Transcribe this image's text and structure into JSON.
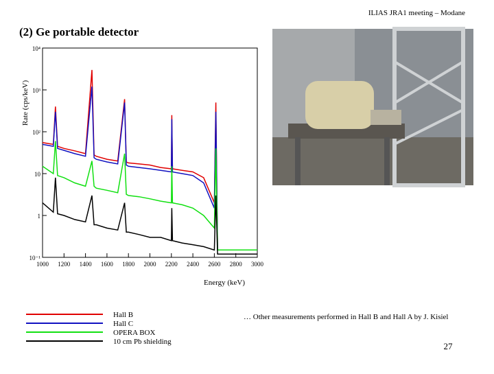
{
  "header": "ILIAS JRA1 meeting – Modane",
  "title": "(2) Ge portable detector",
  "note": "… Other measurements performed in Hall B and Hall A by J. Kisiel",
  "page_number": "27",
  "chart_data": {
    "type": "line",
    "ylabel": "Rate (cps/keV)",
    "xlabel": "Energy (keV)",
    "ylog": true,
    "xlim": [
      1000,
      3000
    ],
    "ylim": [
      0.1,
      10000
    ],
    "xticks": [
      1000,
      1200,
      1400,
      1600,
      1800,
      2000,
      2200,
      2400,
      2600,
      2800,
      3000
    ],
    "yticks": [
      {
        "value": 0.1,
        "label": "10⁻¹"
      },
      {
        "value": 1,
        "label": "1"
      },
      {
        "value": 10,
        "label": "10"
      },
      {
        "value": 100,
        "label": "10²"
      },
      {
        "value": 1000,
        "label": "10³"
      },
      {
        "value": 10000,
        "label": "10⁴"
      }
    ],
    "x": [
      1000,
      1100,
      1120,
      1140,
      1200,
      1300,
      1400,
      1460,
      1480,
      1500,
      1600,
      1700,
      1764,
      1780,
      1800,
      1900,
      2000,
      2100,
      2200,
      2204,
      2210,
      2300,
      2400,
      2500,
      2600,
      2614,
      2630,
      2700,
      2800,
      2900,
      3000
    ],
    "series": [
      {
        "name": "Hall B",
        "color": "#e00000",
        "values": [
          55,
          50,
          400,
          45,
          40,
          35,
          30,
          3000,
          28,
          26,
          22,
          20,
          600,
          19,
          18,
          17,
          16,
          14,
          13,
          250,
          13,
          12,
          11,
          8,
          2,
          500,
          0.15,
          0.15,
          0.15,
          0.15,
          0.15
        ]
      },
      {
        "name": "Hall C",
        "color": "#1010c0",
        "values": [
          50,
          45,
          300,
          40,
          36,
          30,
          26,
          1200,
          24,
          22,
          19,
          17,
          500,
          16,
          15,
          14,
          13,
          12,
          11,
          200,
          11,
          10,
          9,
          6,
          1.5,
          300,
          0.15,
          0.15,
          0.15,
          0.15,
          0.15
        ]
      },
      {
        "name": "OPERA BOX",
        "color": "#10e010",
        "values": [
          15,
          10,
          60,
          9,
          8,
          6,
          5,
          20,
          5,
          4.5,
          4,
          3.5,
          30,
          3.2,
          3,
          2.8,
          2.5,
          2.2,
          2,
          15,
          2,
          1.8,
          1.5,
          1,
          0.5,
          40,
          0.15,
          0.15,
          0.15,
          0.15,
          0.15
        ]
      },
      {
        "name": "10 cm Pb shielding",
        "color": "#000000",
        "values": [
          2,
          1.2,
          8,
          1.1,
          1,
          0.8,
          0.7,
          3,
          0.6,
          0.6,
          0.5,
          0.45,
          2,
          0.4,
          0.4,
          0.35,
          0.3,
          0.3,
          0.25,
          1.5,
          0.25,
          0.22,
          0.2,
          0.18,
          0.15,
          3,
          0.12,
          0.12,
          0.12,
          0.12,
          0.12
        ]
      }
    ]
  }
}
